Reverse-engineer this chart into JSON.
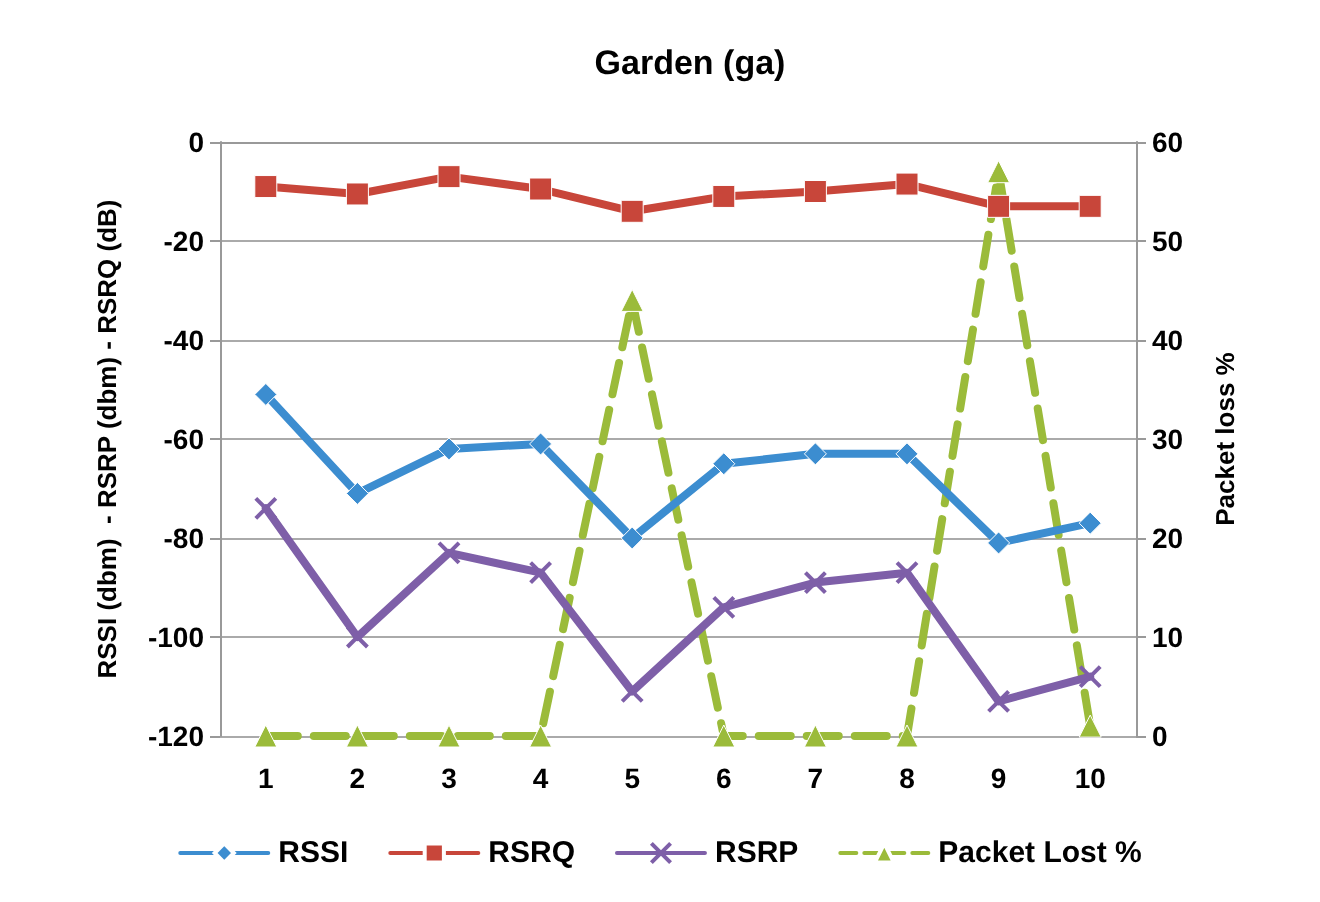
{
  "chart_data": {
    "type": "line",
    "title": "Garden (ga)",
    "ylabel": "RSSI (dbm)  - RSRP (dbm) - RSRQ (dB)",
    "y2label": "Packet loss %",
    "categories": [
      "1",
      "2",
      "3",
      "4",
      "5",
      "6",
      "7",
      "8",
      "9",
      "10"
    ],
    "series": [
      {
        "name": "RSSI",
        "color": "#3c8dd0",
        "marker": "diamond",
        "values": [
          -51,
          -71,
          -62,
          -61,
          -80,
          -65,
          -63,
          -63,
          -81,
          -77
        ]
      },
      {
        "name": "RSRQ",
        "color": "#c8463a",
        "marker": "square",
        "values": [
          -9,
          -10.5,
          -7,
          -9.5,
          -14,
          -11,
          -10,
          -8.5,
          -13,
          -13
        ]
      },
      {
        "name": "RSRP",
        "color": "#7e5fa8",
        "marker": "cross",
        "values": [
          -74,
          -100,
          -83,
          -87,
          -111,
          -94,
          -89,
          -87,
          -113,
          -108
        ]
      },
      {
        "name": "Packet Lost %",
        "color": "#9bbb3a",
        "marker": "triangle",
        "line_style": "dashed",
        "axis": "y2",
        "values": [
          0,
          0,
          0,
          0,
          44,
          0,
          0,
          0,
          57,
          1
        ]
      }
    ],
    "ylim": [
      -120,
      0
    ],
    "yticks": [
      -120,
      -100,
      -80,
      -60,
      -40,
      -20,
      0
    ],
    "y2lim": [
      0,
      60
    ],
    "y2ticks": [
      0,
      10,
      20,
      30,
      40,
      50,
      60
    ],
    "grid": "y",
    "legend": "bottom"
  }
}
